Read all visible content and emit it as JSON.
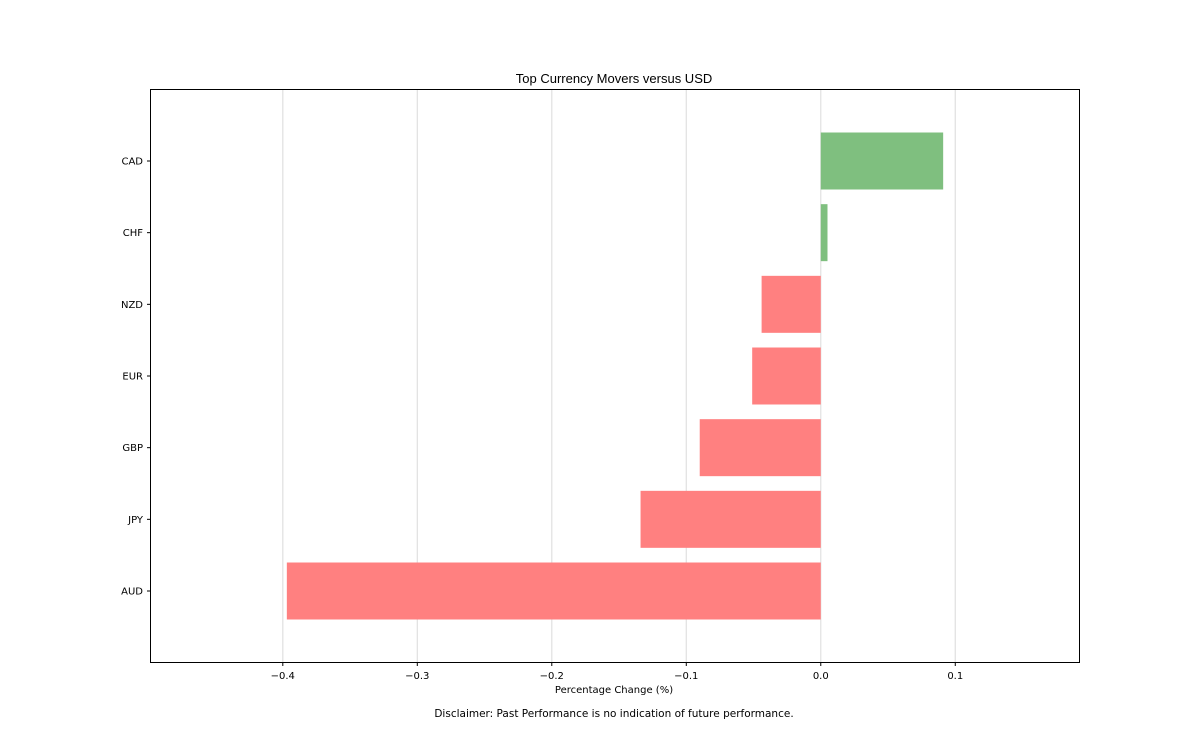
{
  "chart_data": {
    "type": "bar",
    "orientation": "horizontal",
    "title": "Top Currency Movers versus USD",
    "xlabel": "Percentage Change (%)",
    "ylabel": "",
    "categories": [
      "CAD",
      "CHF",
      "NZD",
      "EUR",
      "GBP",
      "JPY",
      "AUD"
    ],
    "values": [
      0.091,
      0.005,
      -0.044,
      -0.051,
      -0.09,
      -0.134,
      -0.397
    ],
    "xlim": [
      -0.498,
      0.192
    ],
    "xticks": [
      -0.4,
      -0.3,
      -0.2,
      -0.1,
      0.0,
      0.1
    ],
    "xtick_labels": [
      "−0.4",
      "−0.3",
      "−0.2",
      "−0.1",
      "0.0",
      "0.1"
    ],
    "grid": "x-axis vertical gridlines",
    "legend": "none",
    "colors": {
      "positive": "#7fbf7f",
      "negative": "#ff8080",
      "grid": "#e0e0e0",
      "frame": "#000000"
    },
    "footnote": "Disclaimer: Past Performance is no indication of future performance."
  }
}
